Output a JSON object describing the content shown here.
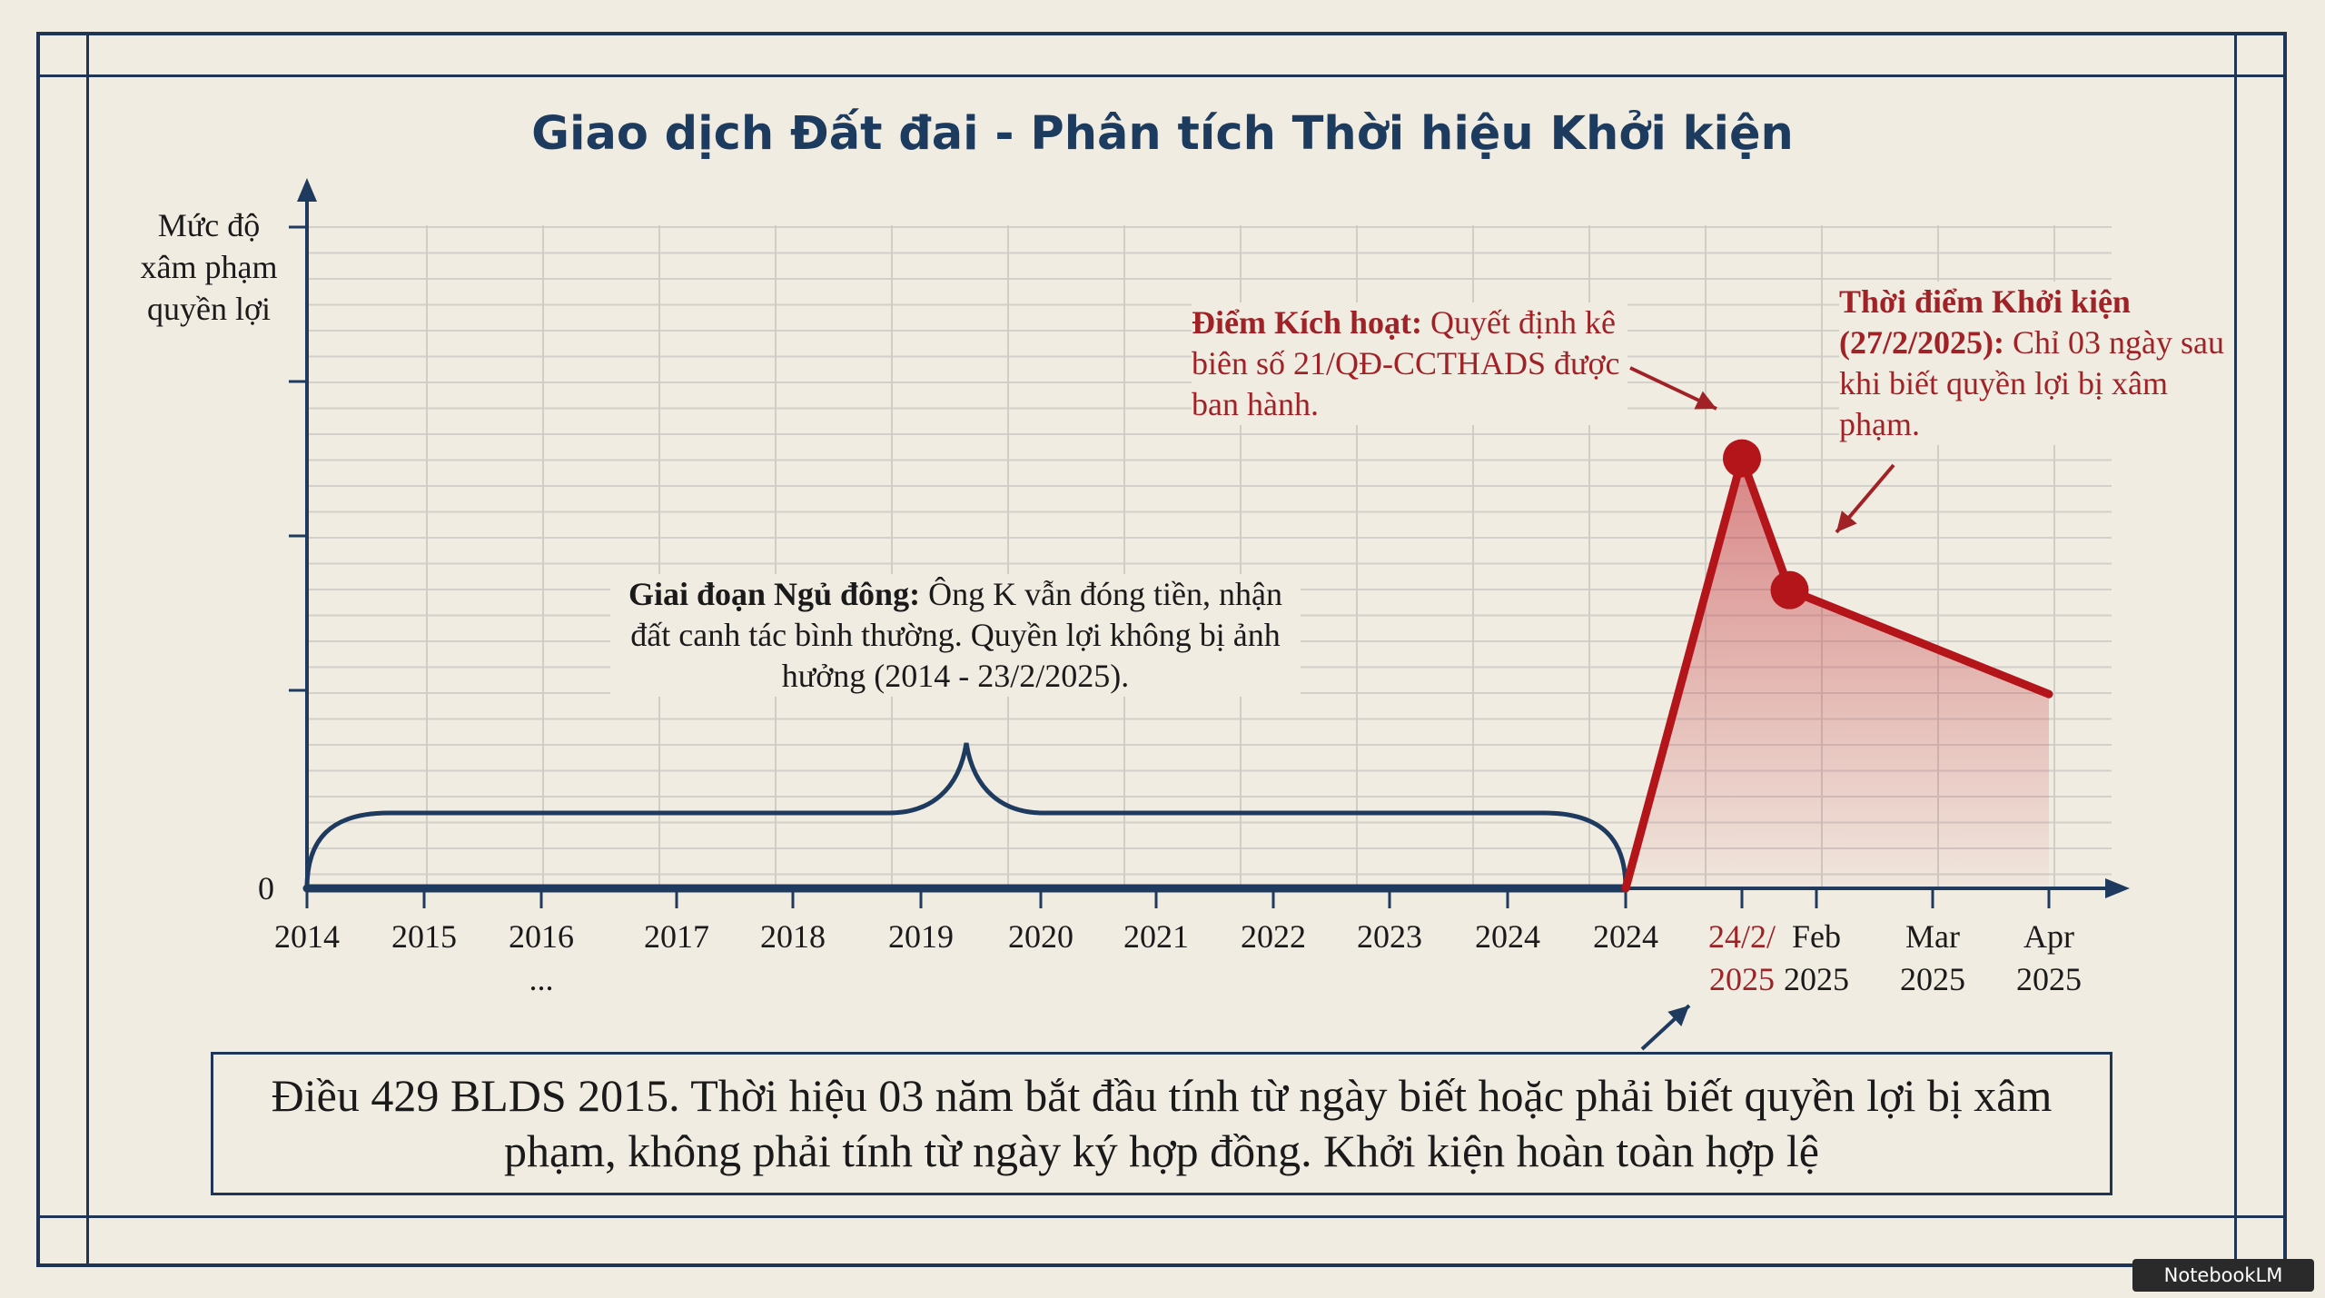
{
  "title": "Giao dịch Đất đai - Phân tích Thời hiệu Khởi kiện",
  "chart_data": {
    "type": "line",
    "title": "Giao dịch Đất đai - Phân tích Thời hiệu Khởi kiện",
    "ylabel": "Mức độ xâm phạm quyền lợi",
    "xlabel": "",
    "y_tick_labels": [
      "0"
    ],
    "x_tick_labels": [
      {
        "line1": "2014",
        "line2": ""
      },
      {
        "line1": "2015",
        "line2": ""
      },
      {
        "line1": "2016",
        "line2": "..."
      },
      {
        "line1": "2017",
        "line2": ""
      },
      {
        "line1": "2018",
        "line2": ""
      },
      {
        "line1": "2019",
        "line2": ""
      },
      {
        "line1": "2020",
        "line2": ""
      },
      {
        "line1": "2021",
        "line2": ""
      },
      {
        "line1": "2022",
        "line2": ""
      },
      {
        "line1": "2023",
        "line2": ""
      },
      {
        "line1": "2024",
        "line2": ""
      },
      {
        "line1": "2024",
        "line2": ""
      },
      {
        "line1": "24/2/",
        "line2": "2025",
        "highlight": true
      },
      {
        "line1": "Feb",
        "line2": "2025"
      },
      {
        "line1": "Mar",
        "line2": "2025"
      },
      {
        "line1": "Apr",
        "line2": "2025"
      }
    ],
    "series": [
      {
        "color": "#1f3a5f",
        "points": [
          [
            0,
            0
          ],
          [
            11,
            0
          ]
        ]
      },
      {
        "color": "#b3151b",
        "points": [
          [
            11,
            0
          ],
          [
            12,
            3.1
          ],
          [
            12.64,
            2.15
          ],
          [
            15,
            1.4
          ]
        ]
      }
    ],
    "markers": [
      [
        12,
        3.1
      ],
      [
        12.64,
        2.15
      ]
    ],
    "ylim": [
      0,
      4.8
    ],
    "grid": true,
    "annotations": {
      "dormant_bold": "Giai đoạn Ngủ đông:",
      "dormant_text": " Ông K vẫn đóng tiền, nhận đất canh tác bình thường. Quyền lợi không bị ảnh hưởng (2014 - 23/2/2025).",
      "trigger_bold": "Điểm Kích hoạt:",
      "trigger_text": " Quyết định kê biên số 21/QĐ-CCTHADS được ban hành.",
      "lawsuit_bold": "Thời điểm Khởi kiện (27/2/2025):",
      "lawsuit_text": " Chỉ 03 ngày sau khi biết quyền lợi bị xâm phạm."
    },
    "colors": {
      "navy": "#1f3a5f",
      "red": "#b3151b",
      "background": "#f1ece2"
    }
  },
  "law_text": "Điều 429 BLDS 2015. Thời hiệu 03 năm bắt đầu tính từ ngày biết hoặc phải biết quyền lợi bị xâm phạm, không phải tính từ ngày ký hợp đồng. Khởi kiện hoàn toàn hợp lệ",
  "watermark": "NotebookLM"
}
